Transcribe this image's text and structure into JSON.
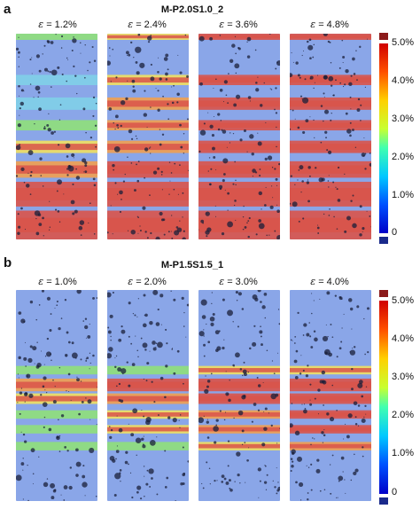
{
  "colors": {
    "low": "#8aa6e8",
    "high": "#d9544a",
    "over": "#8b1a1a",
    "under": "#1a2a8b"
  },
  "panels": [
    {
      "letter": "a",
      "title": "M-P2.0S1.0_2",
      "strains": [
        "= 1.2%",
        "= 2.4%",
        "= 3.6%",
        "= 4.8%"
      ],
      "colorbar_ticks": [
        "5.0%",
        "4.0%",
        "3.0%",
        "2.0%",
        "1.0%",
        "0"
      ]
    },
    {
      "letter": "b",
      "title": "M-P1.5S1.5_1",
      "strains": [
        "= 1.0%",
        "= 2.0%",
        "= 3.0%",
        "= 4.0%"
      ],
      "colorbar_ticks": [
        "5.0%",
        "4.0%",
        "3.0%",
        "2.0%",
        "1.0%",
        "0"
      ]
    }
  ]
}
